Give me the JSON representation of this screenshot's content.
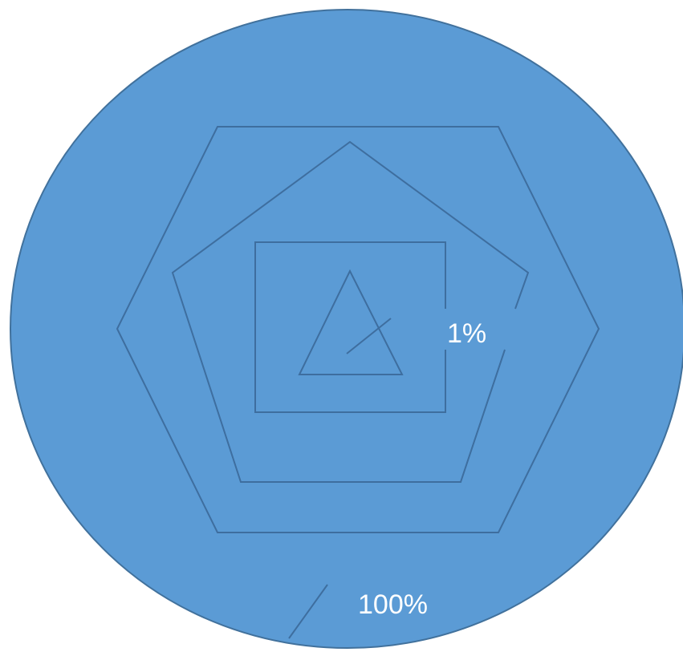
{
  "diagram": {
    "labels": {
      "inner_percent": "1%",
      "outer_percent": "100%"
    },
    "colors": {
      "circle_fill": "#5b9bd5",
      "circle_stroke": "#41719c",
      "outline_stroke": "#3e6e9f",
      "label_text": "#ffffff"
    },
    "shapes": [
      "circle",
      "hexagon",
      "pentagon",
      "square",
      "triangle"
    ]
  }
}
